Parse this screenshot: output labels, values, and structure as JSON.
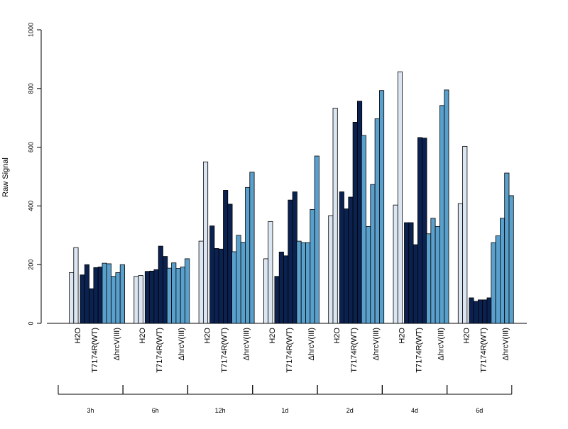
{
  "chart_data": {
    "type": "bar",
    "ylabel": "Raw Signal",
    "xlabel": "",
    "ylim": [
      0,
      1000
    ],
    "yticks": [
      0,
      200,
      400,
      600,
      800,
      1000
    ],
    "grid": false,
    "legend": "none",
    "time_points": [
      "3h",
      "6h",
      "12h",
      "1d",
      "2d",
      "4d",
      "6d"
    ],
    "treatments": [
      {
        "label": "H2O",
        "color": "#dce6f2"
      },
      {
        "label": "T7174R(WT)",
        "color": "#0b2250"
      },
      {
        "label": "ΔhrcV(III)",
        "color": "#5aa0cc"
      }
    ],
    "groups": [
      {
        "time": "3h",
        "values": [
          [
            173,
            258
          ],
          [
            165,
            200,
            118,
            190,
            192
          ],
          [
            205,
            203,
            160,
            173,
            200
          ]
        ]
      },
      {
        "time": "6h",
        "values": [
          [
            160,
            163
          ],
          [
            177,
            178,
            183,
            263,
            228
          ],
          [
            188,
            206,
            187,
            192,
            220
          ]
        ]
      },
      {
        "time": "12h",
        "values": [
          [
            280,
            550
          ],
          [
            332,
            255,
            253,
            453,
            406
          ],
          [
            244,
            300,
            276,
            463,
            515
          ]
        ]
      },
      {
        "time": "1d",
        "values": [
          [
            220,
            347
          ],
          [
            160,
            243,
            230,
            420,
            448
          ],
          [
            280,
            275,
            275,
            388,
            570
          ]
        ]
      },
      {
        "time": "2d",
        "values": [
          [
            367,
            733
          ],
          [
            448,
            390,
            430,
            685,
            757
          ],
          [
            640,
            330,
            473,
            697,
            793
          ]
        ]
      },
      {
        "time": "4d",
        "values": [
          [
            403,
            857
          ],
          [
            343,
            343,
            268,
            633,
            631
          ],
          [
            305,
            358,
            330,
            742,
            795
          ]
        ]
      },
      {
        "time": "6d",
        "values": [
          [
            408,
            603
          ],
          [
            87,
            75,
            80,
            80,
            87
          ],
          [
            275,
            298,
            358,
            512,
            435
          ]
        ]
      }
    ]
  }
}
